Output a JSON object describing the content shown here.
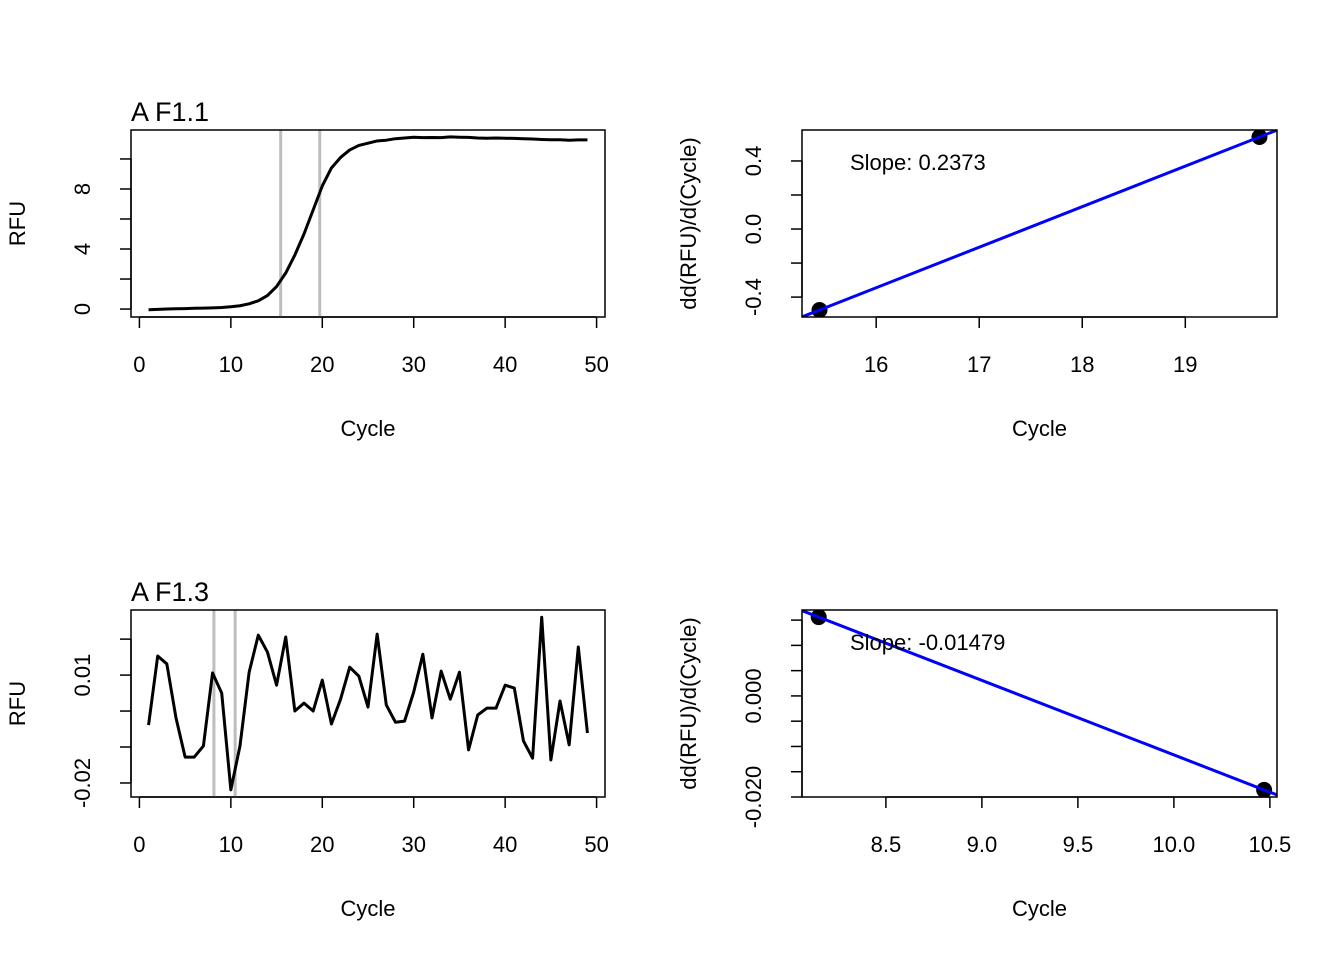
{
  "chart_data": [
    {
      "type": "line",
      "title": "A F1.1",
      "xlabel": "Cycle",
      "ylabel": "RFU",
      "color": "#000000",
      "x": [
        1,
        2,
        3,
        4,
        5,
        6,
        7,
        8,
        9,
        10,
        11,
        12,
        13,
        14,
        15,
        16,
        17,
        18,
        19,
        20,
        21,
        22,
        23,
        24,
        25,
        26,
        27,
        28,
        29,
        30,
        31,
        32,
        33,
        34,
        35,
        36,
        37,
        38,
        39,
        40,
        41,
        42,
        43,
        44,
        45,
        46,
        47,
        48,
        49
      ],
      "values": [
        -0.05,
        -0.02,
        0,
        0.02,
        0.03,
        0.05,
        0.06,
        0.08,
        0.1,
        0.15,
        0.22,
        0.35,
        0.55,
        0.9,
        1.5,
        2.4,
        3.6,
        5.0,
        6.6,
        8.2,
        9.4,
        10.1,
        10.6,
        10.9,
        11.05,
        11.2,
        11.25,
        11.35,
        11.4,
        11.45,
        11.42,
        11.43,
        11.42,
        11.47,
        11.45,
        11.44,
        11.4,
        11.38,
        11.4,
        11.38,
        11.37,
        11.35,
        11.33,
        11.3,
        11.28,
        11.28,
        11.25,
        11.27,
        11.27
      ],
      "xlim": [
        -0.92,
        50.92
      ],
      "ylim": [
        -0.53,
        11.93
      ],
      "xticks": [
        0,
        10,
        20,
        30,
        40,
        50
      ],
      "yticks": [
        0,
        4,
        8
      ],
      "minor_yticks": [
        2,
        6,
        10
      ],
      "vlines": [
        15.45,
        19.72
      ],
      "vline_color": "#bebebe"
    },
    {
      "type": "scatter",
      "xlabel": "Cycle",
      "ylabel": "dd(RFU)/d(Cycle)",
      "color": "#000000",
      "x": [
        15.45,
        19.72
      ],
      "values": [
        -0.476,
        0.541
      ],
      "xlim": [
        15.28,
        19.89
      ],
      "ylim": [
        -0.517,
        0.582
      ],
      "xticks": [
        16,
        17,
        18,
        19
      ],
      "yticks": [
        -0.4,
        {
          "value": 0,
          "label": "0.0"
        },
        0.4
      ],
      "minor_yticks": [
        -0.2,
        0.2
      ],
      "fit_color": "#0000ff",
      "annotation": "Slope:  0.2373"
    },
    {
      "type": "line",
      "title": "A F1.3",
      "xlabel": "Cycle",
      "ylabel": "RFU",
      "color": "#000000",
      "x": [
        1,
        2,
        3,
        4,
        5,
        6,
        7,
        8,
        9,
        10,
        11,
        12,
        13,
        14,
        15,
        16,
        17,
        18,
        19,
        20,
        21,
        22,
        23,
        24,
        25,
        26,
        27,
        28,
        29,
        30,
        31,
        32,
        33,
        34,
        35,
        36,
        37,
        38,
        39,
        40,
        41,
        42,
        43,
        44,
        45,
        46,
        47,
        48,
        49
      ],
      "values": [
        -0.0039,
        0.0153,
        0.0131,
        -0.0019,
        -0.0128,
        -0.0128,
        -0.0097,
        0.0106,
        0.005,
        -0.0219,
        -0.0097,
        0.0108,
        0.0211,
        0.0164,
        0.0072,
        0.0206,
        0,
        0.0022,
        0,
        0.0086,
        -0.0036,
        0.0033,
        0.0122,
        0.0097,
        0.0011,
        0.0214,
        0.0017,
        -0.0031,
        -0.0028,
        0.0053,
        0.0158,
        -0.0019,
        0.0111,
        0.0033,
        0.0108,
        -0.0108,
        -0.0011,
        0.0008,
        0.0008,
        0.0072,
        0.0064,
        -0.0083,
        -0.0131,
        0.0261,
        -0.0136,
        0.0028,
        -0.0094,
        0.0178,
        -0.0061
      ],
      "xlim": [
        -0.92,
        50.92
      ],
      "ylim": [
        -0.0239,
        0.0281
      ],
      "xticks": [
        0,
        10,
        20,
        30,
        40,
        50
      ],
      "yticks": [
        -0.02,
        0.01
      ],
      "minor_yticks": [
        -0.01,
        0,
        0.02
      ],
      "vlines": [
        8.15,
        10.47
      ],
      "vline_color": "#bebebe"
    },
    {
      "type": "scatter",
      "xlabel": "Cycle",
      "ylabel": "dd(RFU)/d(Cycle)",
      "color": "#000000",
      "x": [
        8.15,
        10.47
      ],
      "values": [
        0.0156,
        -0.0186
      ],
      "xlim": [
        8.063,
        10.537
      ],
      "ylim": [
        -0.02,
        0.017
      ],
      "xticks": [
        8.5,
        {
          "value": 9,
          "label": "9.0"
        },
        9.5,
        {
          "value": 10,
          "label": "10.0"
        },
        10.5
      ],
      "yticks": [
        {
          "value": -0.02,
          "label": "-0.020"
        },
        {
          "value": 0,
          "label": "0.000"
        }
      ],
      "minor_yticks": [
        -0.015,
        -0.01,
        -0.005,
        0.005,
        0.01,
        0.015
      ],
      "fit_color": "#0000ff",
      "annotation": "Slope:  -0.01479"
    }
  ]
}
